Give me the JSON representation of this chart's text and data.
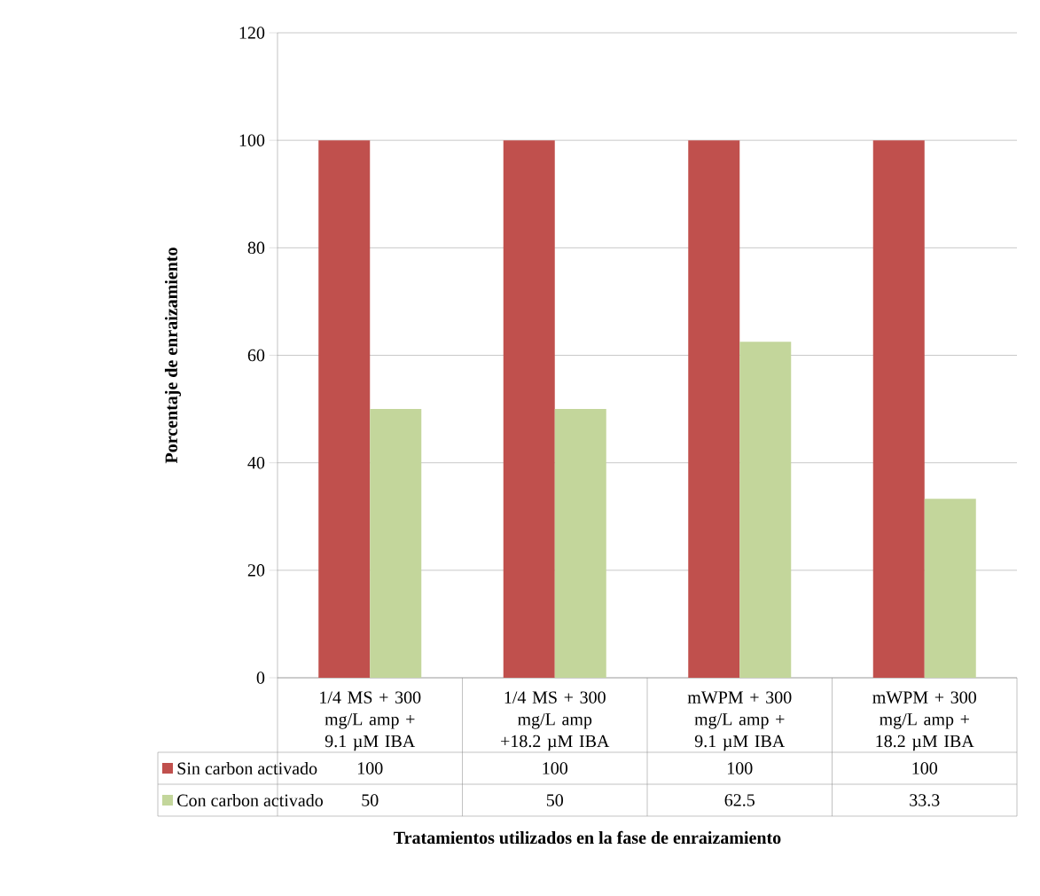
{
  "chart_data": {
    "type": "bar",
    "categories": [
      "1/4 MS + 300 mg/L amp + 9.1 µM IBA",
      "1/4 MS + 300 mg/L amp +18.2 µM IBA",
      "mWPM + 300 mg/L amp + 9.1 µM IBA",
      "mWPM + 300 mg/L amp + 18.2 µM IBA"
    ],
    "series": [
      {
        "name": "Sin carbon activado",
        "color": "#c0504d",
        "values": [
          100,
          100,
          100,
          100
        ]
      },
      {
        "name": "Con carbon activado",
        "color": "#c3d69b",
        "values": [
          50,
          50,
          62.5,
          33.3
        ]
      }
    ],
    "ylim": [
      0,
      120
    ],
    "yticks": [
      0,
      20,
      40,
      60,
      80,
      100,
      120
    ],
    "ylabel": "Porcentaje de enraizamiento",
    "xlabel": "Tratamientos utilizados en la fase de enraizamiento",
    "grid": "y",
    "legend": "bottom left",
    "data_labels": true
  }
}
